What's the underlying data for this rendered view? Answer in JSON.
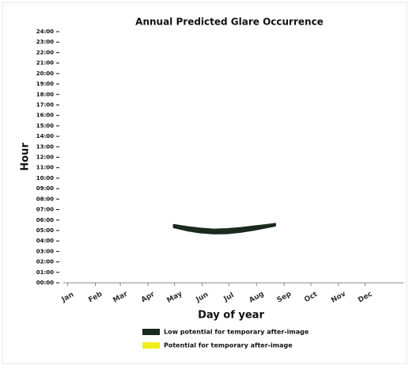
{
  "chart_data": {
    "type": "band",
    "title": "Annual Predicted Glare Occurrence",
    "x_label": "Day of year",
    "y_label": "Hour",
    "xlim": [
      -4,
      378
    ],
    "xticks": [
      {
        "value": 1,
        "label": "Jan"
      },
      {
        "value": 32,
        "label": "Feb"
      },
      {
        "value": 60,
        "label": "Mar"
      },
      {
        "value": 91,
        "label": "Apr"
      },
      {
        "value": 121,
        "label": "May"
      },
      {
        "value": 152,
        "label": "Jun"
      },
      {
        "value": 182,
        "label": "Jul"
      },
      {
        "value": 213,
        "label": "Aug"
      },
      {
        "value": 244,
        "label": "Sep"
      },
      {
        "value": 274,
        "label": "Oct"
      },
      {
        "value": 305,
        "label": "Nov"
      },
      {
        "value": 335,
        "label": "Dec"
      }
    ],
    "ylim": [
      0,
      24
    ],
    "yticks": [
      {
        "value": 0,
        "label": "00:00"
      },
      {
        "value": 1,
        "label": "01:00"
      },
      {
        "value": 2,
        "label": "02:00"
      },
      {
        "value": 3,
        "label": "03:00"
      },
      {
        "value": 4,
        "label": "04:00"
      },
      {
        "value": 5,
        "label": "05:00"
      },
      {
        "value": 6,
        "label": "06:00"
      },
      {
        "value": 7,
        "label": "07:00"
      },
      {
        "value": 8,
        "label": "08:00"
      },
      {
        "value": 9,
        "label": "09:00"
      },
      {
        "value": 10,
        "label": "10:00"
      },
      {
        "value": 11,
        "label": "11:00"
      },
      {
        "value": 12,
        "label": "12:00"
      },
      {
        "value": 13,
        "label": "13:00"
      },
      {
        "value": 14,
        "label": "14:00"
      },
      {
        "value": 15,
        "label": "15:00"
      },
      {
        "value": 16,
        "label": "16:00"
      },
      {
        "value": 17,
        "label": "17:00"
      },
      {
        "value": 18,
        "label": "18:00"
      },
      {
        "value": 19,
        "label": "19:00"
      },
      {
        "value": 20,
        "label": "20:00"
      },
      {
        "value": 21,
        "label": "21:00"
      },
      {
        "value": 22,
        "label": "22:00"
      },
      {
        "value": 23,
        "label": "23:00"
      },
      {
        "value": 24,
        "label": "24:00"
      }
    ],
    "series": [
      {
        "name": "Low potential for temporary after-image",
        "color": "#1b2a1e",
        "x": [
          120,
          135,
          150,
          165,
          180,
          195,
          210,
          225,
          234
        ],
        "high": [
          5.55,
          5.35,
          5.2,
          5.1,
          5.15,
          5.25,
          5.4,
          5.55,
          5.65
        ],
        "low": [
          5.3,
          5.0,
          4.8,
          4.7,
          4.72,
          4.85,
          5.05,
          5.3,
          5.45
        ]
      },
      {
        "name": "Potential for temporary after-image",
        "color": "#f2ee1a",
        "x": [],
        "high": [],
        "low": []
      }
    ]
  }
}
